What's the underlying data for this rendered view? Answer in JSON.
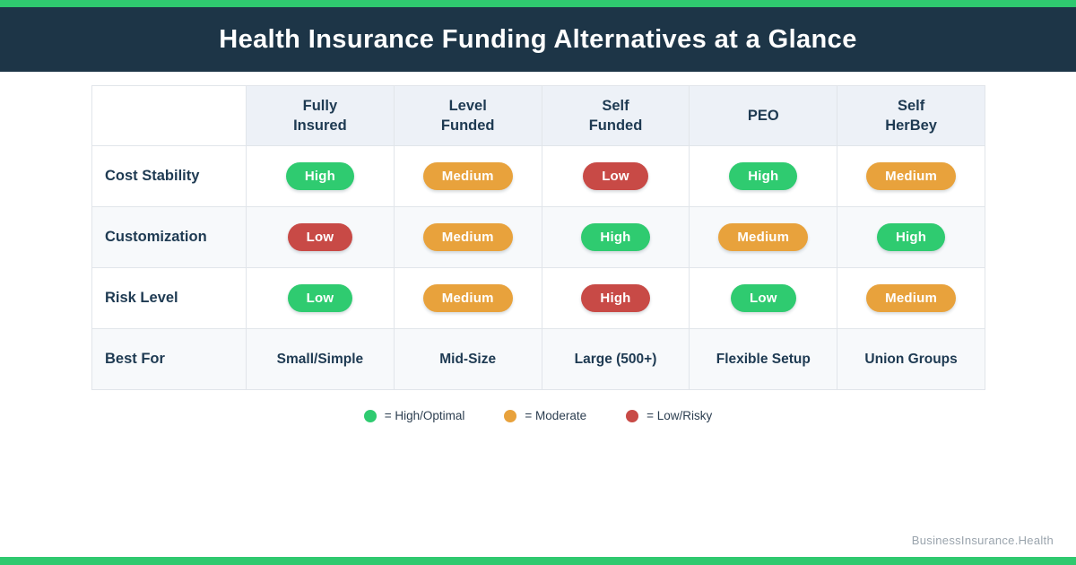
{
  "header": {
    "title": "Health Insurance Funding Alternatives at a Glance"
  },
  "colors": {
    "accent_green": "#2fcb70",
    "accent_orange": "#e8a23c",
    "accent_red": "#c84a46",
    "header_navy": "#1d3547",
    "text_navy": "#1e3a52",
    "header_cell_bg": "#edf1f7",
    "alt_row_bg": "#f7f9fb"
  },
  "chart_data": {
    "type": "table",
    "title": "Health Insurance Funding Alternatives at a Glance",
    "columns": [
      "Fully\nInsured",
      "Level\nFunded",
      "Self\nFunded",
      "PEO",
      "Self\nHerBey"
    ],
    "rows": [
      {
        "label": "Cost Stability",
        "cells": [
          {
            "text": "High",
            "level": "green"
          },
          {
            "text": "Medium",
            "level": "orange"
          },
          {
            "text": "Low",
            "level": "red"
          },
          {
            "text": "High",
            "level": "green"
          },
          {
            "text": "Medium",
            "level": "orange"
          }
        ]
      },
      {
        "label": "Customization",
        "cells": [
          {
            "text": "Low",
            "level": "red"
          },
          {
            "text": "Medium",
            "level": "orange"
          },
          {
            "text": "High",
            "level": "green"
          },
          {
            "text": "Medium",
            "level": "orange"
          },
          {
            "text": "High",
            "level": "green"
          }
        ]
      },
      {
        "label": "Risk Level",
        "cells": [
          {
            "text": "Low",
            "level": "green"
          },
          {
            "text": "Medium",
            "level": "orange"
          },
          {
            "text": "High",
            "level": "red"
          },
          {
            "text": "Low",
            "level": "green"
          },
          {
            "text": "Medium",
            "level": "orange"
          }
        ]
      },
      {
        "label": "Best For",
        "cells": [
          {
            "text": "Small/Simple",
            "level": "plain"
          },
          {
            "text": "Mid-Size",
            "level": "plain"
          },
          {
            "text": "Large (500+)",
            "level": "plain"
          },
          {
            "text": "Flexible Setup",
            "level": "plain"
          },
          {
            "text": "Union Groups",
            "level": "plain"
          }
        ]
      }
    ]
  },
  "legend": {
    "items": [
      {
        "color": "green",
        "label": "= High/Optimal"
      },
      {
        "color": "orange",
        "label": "= Moderate"
      },
      {
        "color": "red",
        "label": "= Low/Risky"
      }
    ]
  },
  "footer": {
    "brand": "BusinessInsurance.Health"
  }
}
